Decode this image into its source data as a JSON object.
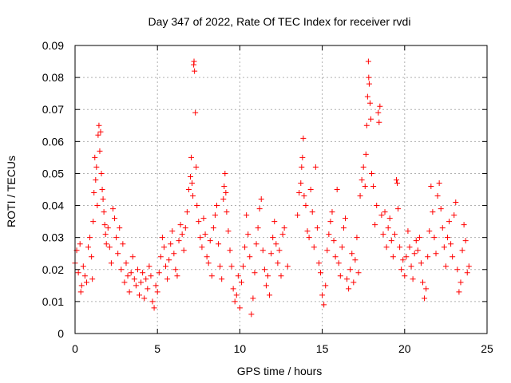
{
  "chart_data": {
    "type": "scatter",
    "title": "Day 347 of 2022, Rate Of TEC Index for receiver rvdi",
    "xlabel": "GPS time / hours",
    "ylabel": "ROTI / TECUs",
    "xlim": [
      0,
      25
    ],
    "ylim": [
      0,
      0.09
    ],
    "x_ticks": [
      "0",
      "5",
      "10",
      "15",
      "20",
      "25"
    ],
    "y_ticks": [
      "0",
      "0.01",
      "0.02",
      "0.03",
      "0.04",
      "0.05",
      "0.06",
      "0.07",
      "0.08",
      "0.09"
    ],
    "grid": true,
    "marker": "+",
    "color": "#ff0000",
    "series": [
      {
        "points": [
          [
            0.0,
            0.022
          ],
          [
            0.1,
            0.026
          ],
          [
            0.2,
            0.019
          ],
          [
            0.3,
            0.028
          ],
          [
            0.35,
            0.013
          ],
          [
            0.4,
            0.015
          ],
          [
            0.5,
            0.021
          ],
          [
            0.6,
            0.018
          ],
          [
            0.7,
            0.016
          ],
          [
            0.8,
            0.027
          ],
          [
            0.9,
            0.03
          ],
          [
            1.0,
            0.024
          ],
          [
            1.05,
            0.017
          ],
          [
            1.1,
            0.035
          ],
          [
            1.15,
            0.044
          ],
          [
            1.2,
            0.055
          ],
          [
            1.25,
            0.048
          ],
          [
            1.3,
            0.052
          ],
          [
            1.35,
            0.04
          ],
          [
            1.4,
            0.062
          ],
          [
            1.45,
            0.065
          ],
          [
            1.5,
            0.057
          ],
          [
            1.55,
            0.063
          ],
          [
            1.6,
            0.05
          ],
          [
            1.65,
            0.045
          ],
          [
            1.7,
            0.042
          ],
          [
            1.75,
            0.038
          ],
          [
            1.8,
            0.034
          ],
          [
            1.85,
            0.031
          ],
          [
            1.9,
            0.028
          ],
          [
            2.0,
            0.033
          ],
          [
            2.1,
            0.027
          ],
          [
            2.2,
            0.022
          ],
          [
            2.3,
            0.039
          ],
          [
            2.4,
            0.036
          ],
          [
            2.5,
            0.03
          ],
          [
            2.6,
            0.025
          ],
          [
            2.7,
            0.033
          ],
          [
            2.8,
            0.02
          ],
          [
            2.9,
            0.028
          ],
          [
            3.0,
            0.016
          ],
          [
            3.1,
            0.022
          ],
          [
            3.2,
            0.018
          ],
          [
            3.3,
            0.013
          ],
          [
            3.4,
            0.019
          ],
          [
            3.5,
            0.024
          ],
          [
            3.6,
            0.017
          ],
          [
            3.7,
            0.015
          ],
          [
            3.8,
            0.02
          ],
          [
            3.9,
            0.012
          ],
          [
            4.0,
            0.016
          ],
          [
            4.1,
            0.019
          ],
          [
            4.2,
            0.011
          ],
          [
            4.3,
            0.017
          ],
          [
            4.4,
            0.014
          ],
          [
            4.5,
            0.021
          ],
          [
            4.6,
            0.018
          ],
          [
            4.7,
            0.01
          ],
          [
            4.8,
            0.008
          ],
          [
            4.9,
            0.015
          ],
          [
            5.0,
            0.013
          ],
          [
            5.1,
            0.019
          ],
          [
            5.2,
            0.024
          ],
          [
            5.3,
            0.03
          ],
          [
            5.4,
            0.027
          ],
          [
            5.5,
            0.021
          ],
          [
            5.6,
            0.017
          ],
          [
            5.7,
            0.023
          ],
          [
            5.8,
            0.028
          ],
          [
            5.9,
            0.032
          ],
          [
            6.0,
            0.025
          ],
          [
            6.1,
            0.02
          ],
          [
            6.2,
            0.018
          ],
          [
            6.3,
            0.029
          ],
          [
            6.4,
            0.034
          ],
          [
            6.5,
            0.031
          ],
          [
            6.6,
            0.026
          ],
          [
            6.7,
            0.033
          ],
          [
            6.8,
            0.038
          ],
          [
            6.9,
            0.045
          ],
          [
            7.0,
            0.049
          ],
          [
            7.05,
            0.055
          ],
          [
            7.1,
            0.047
          ],
          [
            7.15,
            0.043
          ],
          [
            7.2,
            0.084
          ],
          [
            7.22,
            0.085
          ],
          [
            7.25,
            0.082
          ],
          [
            7.3,
            0.069
          ],
          [
            7.35,
            0.052
          ],
          [
            7.4,
            0.04
          ],
          [
            7.5,
            0.035
          ],
          [
            7.6,
            0.03
          ],
          [
            7.7,
            0.027
          ],
          [
            7.8,
            0.036
          ],
          [
            7.9,
            0.031
          ],
          [
            8.0,
            0.024
          ],
          [
            8.1,
            0.022
          ],
          [
            8.2,
            0.029
          ],
          [
            8.3,
            0.018
          ],
          [
            8.4,
            0.033
          ],
          [
            8.5,
            0.037
          ],
          [
            8.6,
            0.04
          ],
          [
            8.7,
            0.028
          ],
          [
            8.8,
            0.021
          ],
          [
            8.9,
            0.017
          ],
          [
            9.0,
            0.042
          ],
          [
            9.05,
            0.046
          ],
          [
            9.1,
            0.05
          ],
          [
            9.15,
            0.044
          ],
          [
            9.2,
            0.038
          ],
          [
            9.3,
            0.032
          ],
          [
            9.4,
            0.026
          ],
          [
            9.5,
            0.021
          ],
          [
            9.6,
            0.014
          ],
          [
            9.7,
            0.01
          ],
          [
            9.8,
            0.012
          ],
          [
            9.9,
            0.018
          ],
          [
            10.0,
            0.008
          ],
          [
            10.1,
            0.016
          ],
          [
            10.2,
            0.021
          ],
          [
            10.3,
            0.027
          ],
          [
            10.4,
            0.037
          ],
          [
            10.5,
            0.031
          ],
          [
            10.6,
            0.024
          ],
          [
            10.7,
            0.006
          ],
          [
            10.8,
            0.011
          ],
          [
            10.9,
            0.019
          ],
          [
            11.0,
            0.028
          ],
          [
            11.1,
            0.033
          ],
          [
            11.2,
            0.039
          ],
          [
            11.3,
            0.042
          ],
          [
            11.4,
            0.026
          ],
          [
            11.5,
            0.02
          ],
          [
            11.6,
            0.015
          ],
          [
            11.7,
            0.018
          ],
          [
            11.8,
            0.012
          ],
          [
            11.9,
            0.025
          ],
          [
            12.0,
            0.03
          ],
          [
            12.1,
            0.035
          ],
          [
            12.2,
            0.028
          ],
          [
            12.3,
            0.022
          ],
          [
            12.4,
            0.026
          ],
          [
            12.5,
            0.018
          ],
          [
            12.6,
            0.031
          ],
          [
            12.7,
            0.033
          ],
          [
            12.9,
            0.021
          ],
          [
            13.5,
            0.037
          ],
          [
            13.6,
            0.044
          ],
          [
            13.7,
            0.047
          ],
          [
            13.75,
            0.052
          ],
          [
            13.8,
            0.055
          ],
          [
            13.85,
            0.061
          ],
          [
            13.9,
            0.043
          ],
          [
            14.0,
            0.04
          ],
          [
            14.1,
            0.032
          ],
          [
            14.2,
            0.03
          ],
          [
            14.3,
            0.045
          ],
          [
            14.4,
            0.038
          ],
          [
            14.5,
            0.027
          ],
          [
            14.6,
            0.052
          ],
          [
            14.7,
            0.033
          ],
          [
            14.8,
            0.022
          ],
          [
            14.9,
            0.019
          ],
          [
            15.0,
            0.012
          ],
          [
            15.1,
            0.009
          ],
          [
            15.2,
            0.015
          ],
          [
            15.3,
            0.026
          ],
          [
            15.4,
            0.031
          ],
          [
            15.5,
            0.035
          ],
          [
            15.6,
            0.038
          ],
          [
            15.7,
            0.029
          ],
          [
            15.8,
            0.024
          ],
          [
            15.9,
            0.045
          ],
          [
            16.0,
            0.022
          ],
          [
            16.1,
            0.018
          ],
          [
            16.2,
            0.027
          ],
          [
            16.3,
            0.033
          ],
          [
            16.4,
            0.036
          ],
          [
            16.5,
            0.017
          ],
          [
            16.6,
            0.014
          ],
          [
            16.7,
            0.02
          ],
          [
            16.8,
            0.025
          ],
          [
            16.9,
            0.016
          ],
          [
            17.0,
            0.023
          ],
          [
            17.1,
            0.03
          ],
          [
            17.2,
            0.019
          ],
          [
            17.3,
            0.043
          ],
          [
            17.4,
            0.048
          ],
          [
            17.5,
            0.052
          ],
          [
            17.6,
            0.046
          ],
          [
            17.65,
            0.056
          ],
          [
            17.7,
            0.065
          ],
          [
            17.75,
            0.074
          ],
          [
            17.8,
            0.085
          ],
          [
            17.82,
            0.08
          ],
          [
            17.85,
            0.078
          ],
          [
            17.9,
            0.072
          ],
          [
            17.95,
            0.067
          ],
          [
            18.0,
            0.05
          ],
          [
            18.1,
            0.046
          ],
          [
            18.2,
            0.034
          ],
          [
            18.3,
            0.04
          ],
          [
            18.4,
            0.069
          ],
          [
            18.45,
            0.066
          ],
          [
            18.5,
            0.071
          ],
          [
            18.6,
            0.037
          ],
          [
            18.7,
            0.031
          ],
          [
            18.8,
            0.038
          ],
          [
            18.9,
            0.027
          ],
          [
            19.0,
            0.033
          ],
          [
            19.1,
            0.036
          ],
          [
            19.2,
            0.029
          ],
          [
            19.3,
            0.024
          ],
          [
            19.4,
            0.031
          ],
          [
            19.5,
            0.048
          ],
          [
            19.55,
            0.047
          ],
          [
            19.6,
            0.039
          ],
          [
            19.7,
            0.027
          ],
          [
            19.8,
            0.02
          ],
          [
            19.9,
            0.023
          ],
          [
            20.0,
            0.018
          ],
          [
            20.1,
            0.024
          ],
          [
            20.2,
            0.032
          ],
          [
            20.3,
            0.027
          ],
          [
            20.4,
            0.021
          ],
          [
            20.5,
            0.017
          ],
          [
            20.6,
            0.025
          ],
          [
            20.7,
            0.029
          ],
          [
            20.8,
            0.026
          ],
          [
            20.9,
            0.03
          ],
          [
            21.0,
            0.022
          ],
          [
            21.1,
            0.016
          ],
          [
            21.2,
            0.011
          ],
          [
            21.3,
            0.014
          ],
          [
            21.4,
            0.024
          ],
          [
            21.5,
            0.032
          ],
          [
            21.6,
            0.046
          ],
          [
            21.7,
            0.038
          ],
          [
            21.8,
            0.03
          ],
          [
            21.9,
            0.025
          ],
          [
            22.0,
            0.043
          ],
          [
            22.1,
            0.047
          ],
          [
            22.2,
            0.039
          ],
          [
            22.3,
            0.033
          ],
          [
            22.4,
            0.027
          ],
          [
            22.5,
            0.021
          ],
          [
            22.6,
            0.03
          ],
          [
            22.7,
            0.035
          ],
          [
            22.8,
            0.028
          ],
          [
            22.9,
            0.024
          ],
          [
            23.0,
            0.037
          ],
          [
            23.1,
            0.041
          ],
          [
            23.2,
            0.02
          ],
          [
            23.3,
            0.013
          ],
          [
            23.4,
            0.016
          ],
          [
            23.5,
            0.026
          ],
          [
            23.6,
            0.034
          ],
          [
            23.7,
            0.029
          ],
          [
            23.8,
            0.019
          ],
          [
            23.9,
            0.021
          ]
        ]
      }
    ]
  }
}
